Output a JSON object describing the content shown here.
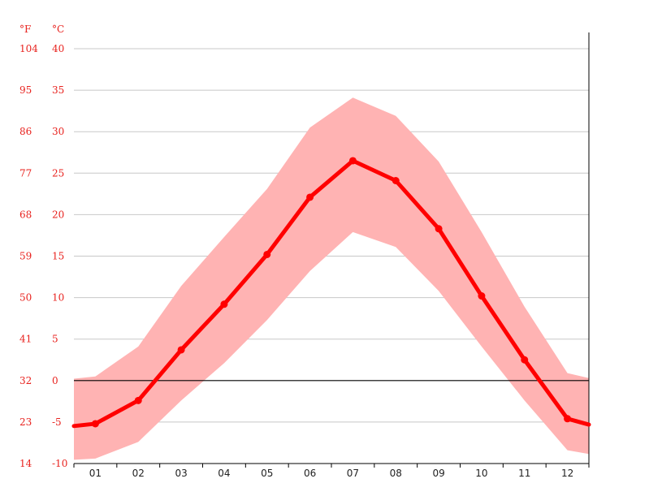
{
  "chart_data": {
    "type": "line",
    "title": "",
    "xlabel": "",
    "ylabel": "",
    "units": {
      "fahrenheit": "°F",
      "celsius": "°C"
    },
    "categories": [
      "01",
      "02",
      "03",
      "04",
      "05",
      "06",
      "07",
      "08",
      "09",
      "10",
      "11",
      "12"
    ],
    "ylim": [
      -10,
      40
    ],
    "y_ticks_c": [
      "40",
      "35",
      "30",
      "25",
      "20",
      "15",
      "10",
      "5",
      "0",
      "-5",
      "-10"
    ],
    "y_ticks_f": [
      "104",
      "95",
      "86",
      "77",
      "68",
      "59",
      "50",
      "41",
      "32",
      "23",
      "14"
    ],
    "y_tick_values": [
      40,
      35,
      30,
      25,
      20,
      15,
      10,
      5,
      0,
      -5,
      -10
    ],
    "series": [
      {
        "values": [
          -5.2,
          -2.4,
          3.7,
          9.2,
          15.2,
          22.1,
          26.5,
          24.1,
          18.3,
          10.2,
          2.5,
          -4.6
        ]
      }
    ],
    "range_band": {
      "max": [
        0.5,
        4.1,
        11.4,
        17.3,
        23.1,
        30.5,
        34.1,
        31.9,
        26.4,
        17.9,
        8.9,
        0.9
      ],
      "min": [
        -9.4,
        -7.4,
        -2.4,
        2.1,
        7.3,
        13.2,
        17.9,
        16.1,
        10.8,
        4.1,
        -2.4,
        -8.4
      ]
    },
    "grid": true,
    "zero_line": true,
    "colors": {
      "line": "#ff0000",
      "band": "#ffb3b3",
      "grid": "#c8c8c8",
      "axis": "#000000",
      "labels": "#e8221e"
    }
  }
}
